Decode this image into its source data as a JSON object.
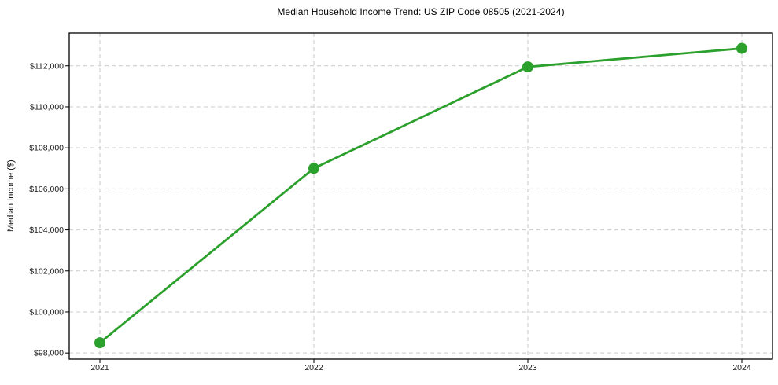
{
  "chart_data": {
    "type": "line",
    "title": "Median Household Income Trend: US ZIP Code 08505 (2021-2024)",
    "xlabel": "",
    "ylabel": "Median Income ($)",
    "categories": [
      "2021",
      "2022",
      "2023",
      "2024"
    ],
    "series": [
      {
        "name": "Median Household Income",
        "values": [
          98500,
          107000,
          111950,
          112850
        ]
      }
    ],
    "ylim": [
      97700,
      113600
    ],
    "yticks": [
      98000,
      100000,
      102000,
      104000,
      106000,
      108000,
      110000,
      112000
    ],
    "ytick_labels": [
      "$98,000",
      "$100,000",
      "$102,000",
      "$104,000",
      "$106,000",
      "$108,000",
      "$110,000",
      "$112,000"
    ],
    "grid": true,
    "grid_style": "dashed",
    "legend": "none",
    "marker": "circle",
    "colors": {
      "line": "#2ca02c",
      "grid": "#c9c9c9",
      "axis": "#000000",
      "tick_text": "#1a1a1a",
      "background": "#ffffff"
    }
  }
}
